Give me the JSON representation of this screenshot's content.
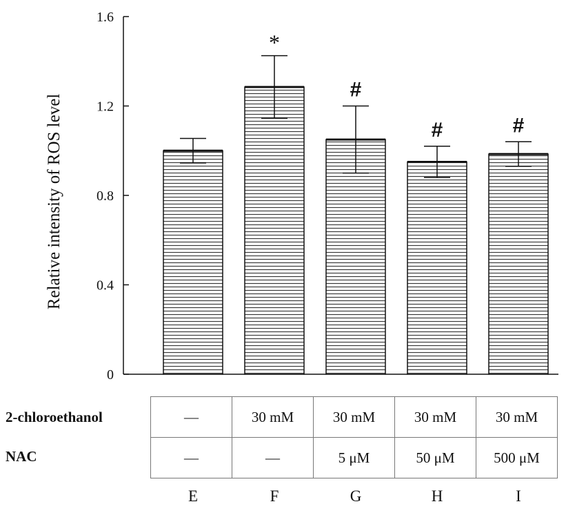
{
  "chart_data": {
    "type": "bar",
    "title": "",
    "xlabel": "",
    "ylabel": "Relative intensity of  ROS level",
    "ylim": [
      0,
      1.6
    ],
    "yticks": [
      "0",
      "0.4",
      "0.8",
      "1.2",
      "1.6"
    ],
    "ytick_values": [
      0,
      0.4,
      0.8,
      1.2,
      1.6
    ],
    "categories": [
      "E",
      "F",
      "G",
      "H",
      "I"
    ],
    "values": [
      1.0,
      1.285,
      1.05,
      0.95,
      0.985
    ],
    "errors": [
      0.055,
      0.14,
      0.15,
      0.07,
      0.055
    ],
    "annotations": [
      "",
      "*",
      "#",
      "#",
      "#"
    ],
    "bar_fill": "horizontal-stripes",
    "grid": false
  },
  "treatment_table": {
    "rows": [
      {
        "label": "2-chloroethanol",
        "cells": [
          "—",
          "30 mM",
          "30 mM",
          "30 mM",
          "30 mM"
        ]
      },
      {
        "label": "NAC",
        "cells": [
          "—",
          "—",
          "5 μM",
          "50 μM",
          "500 μM"
        ]
      }
    ]
  },
  "colors": {
    "bar_stroke": "#111111",
    "stripe": "#333333",
    "background": "#ffffff"
  }
}
